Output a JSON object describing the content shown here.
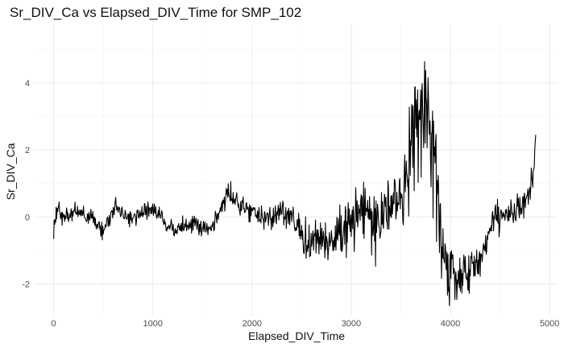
{
  "chart_data": {
    "type": "line",
    "title": "Sr_DIV_Ca vs Elapsed_DIV_Time for SMP_102",
    "xlabel": "Elapsed_DIV_Time",
    "ylabel": "Sr_DIV_Ca",
    "xlim": [
      -200,
      5080
    ],
    "ylim": [
      -2.95,
      5.75
    ],
    "x_ticks": [
      0,
      1000,
      2000,
      3000,
      4000,
      5000
    ],
    "x_tick_labels": [
      "0",
      "1000",
      "2000",
      "3000",
      "4000",
      "5000"
    ],
    "y_ticks": [
      -2,
      0,
      2,
      4
    ],
    "y_tick_labels": [
      "-2",
      "0",
      "2",
      "4"
    ],
    "grid": true,
    "legend": "none",
    "line_color": "#000000",
    "series_knots": {
      "x": [
        0,
        50,
        100,
        200,
        300,
        400,
        450,
        500,
        550,
        600,
        650,
        700,
        800,
        900,
        1000,
        1100,
        1150,
        1200,
        1300,
        1400,
        1500,
        1600,
        1700,
        1750,
        1800,
        1900,
        2000,
        2100,
        2200,
        2300,
        2400,
        2450,
        2500,
        2550,
        2600,
        2700,
        2800,
        2850,
        2900,
        3000,
        3050,
        3100,
        3200,
        3300,
        3400,
        3500,
        3550,
        3600,
        3650,
        3700,
        3750,
        3800,
        3850,
        3900,
        3950,
        4000,
        4100,
        4200,
        4300,
        4400,
        4450,
        4500,
        4600,
        4700,
        4750,
        4800,
        4830,
        4850,
        4860
      ],
      "y": [
        -0.2,
        0.2,
        0.0,
        0.15,
        0.1,
        0.0,
        -0.3,
        -0.35,
        -0.1,
        0.25,
        0.35,
        0.0,
        -0.05,
        0.15,
        0.2,
        -0.05,
        -0.3,
        -0.35,
        -0.3,
        -0.15,
        -0.35,
        -0.3,
        0.4,
        0.65,
        0.55,
        0.3,
        0.2,
        0.0,
        -0.05,
        0.1,
        0.0,
        -0.2,
        -0.7,
        -0.9,
        -0.7,
        -0.6,
        -0.9,
        -0.7,
        -0.6,
        -0.2,
        0.3,
        0.3,
        0.0,
        -0.1,
        0.3,
        0.4,
        1.0,
        2.0,
        3.0,
        3.5,
        3.0,
        2.0,
        1.5,
        -0.5,
        -1.5,
        -1.8,
        -1.75,
        -1.5,
        -1.3,
        -0.4,
        0.0,
        0.0,
        0.2,
        0.3,
        0.5,
        0.9,
        1.2,
        2.0,
        2.45
      ]
    },
    "noise_amplitude_knots": {
      "x": [
        0,
        1500,
        2400,
        2900,
        3100,
        3500,
        3650,
        3800,
        3950,
        4200,
        4400,
        4860
      ],
      "y": [
        0.14,
        0.14,
        0.2,
        0.45,
        0.55,
        0.45,
        0.9,
        0.9,
        0.5,
        0.3,
        0.22,
        0.22
      ]
    },
    "sample_step": 5
  }
}
